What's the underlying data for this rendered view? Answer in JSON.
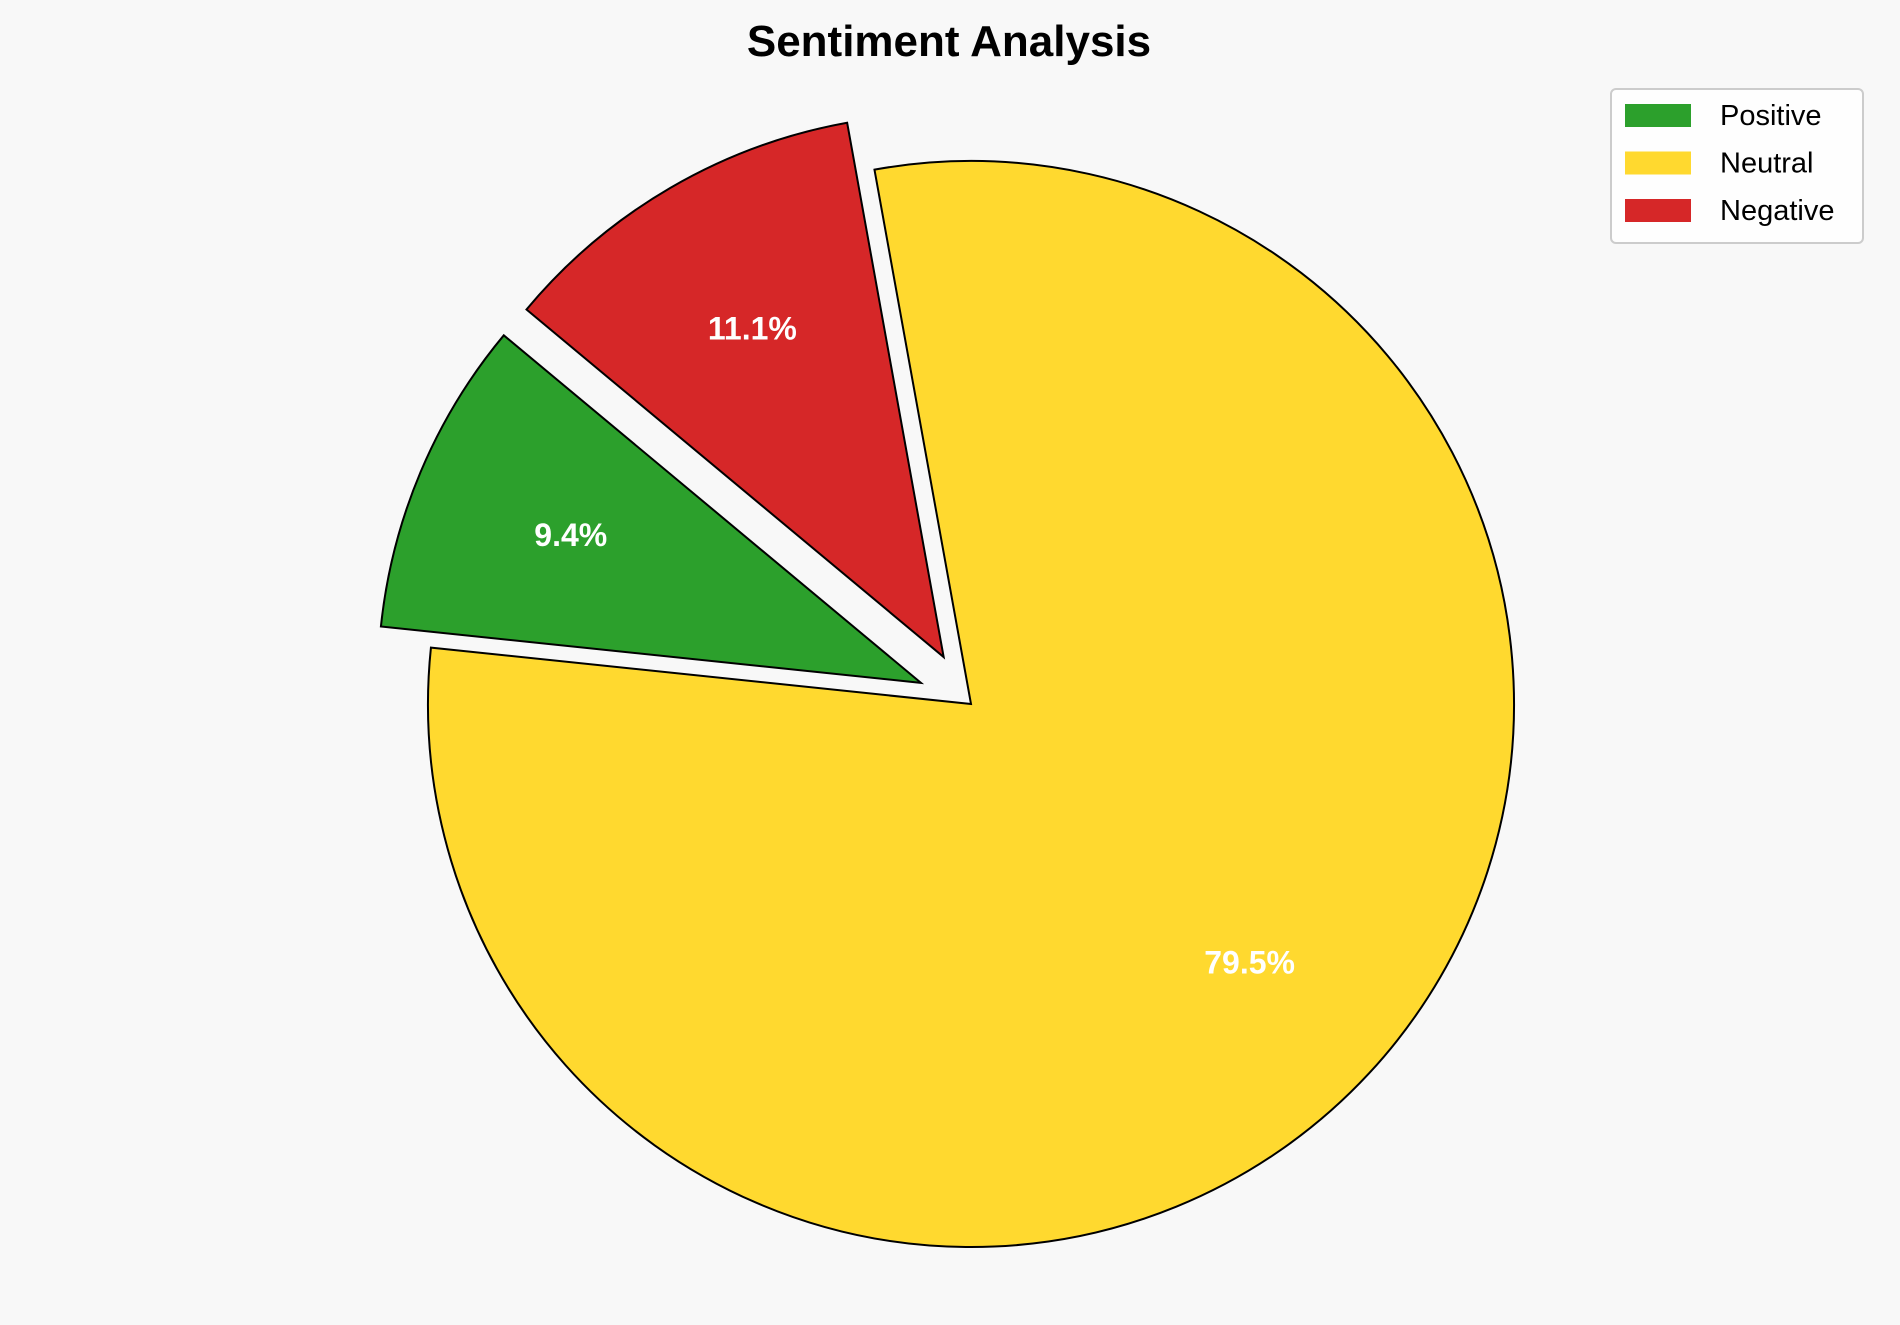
{
  "chart_data": {
    "type": "pie",
    "title": "Sentiment Analysis",
    "labels": [
      "Positive",
      "Neutral",
      "Negative"
    ],
    "values": [
      9.4,
      79.5,
      11.1
    ],
    "percent_labels": [
      "9.4%",
      "79.5%",
      "11.1%"
    ],
    "colors": [
      "#2ca02c",
      "#ffd92f",
      "#d62728"
    ],
    "explode": [
      0.1,
      0,
      0.1
    ],
    "start_angle": 140.2,
    "direction": "counterclockwise",
    "legend_position": "top-right"
  }
}
